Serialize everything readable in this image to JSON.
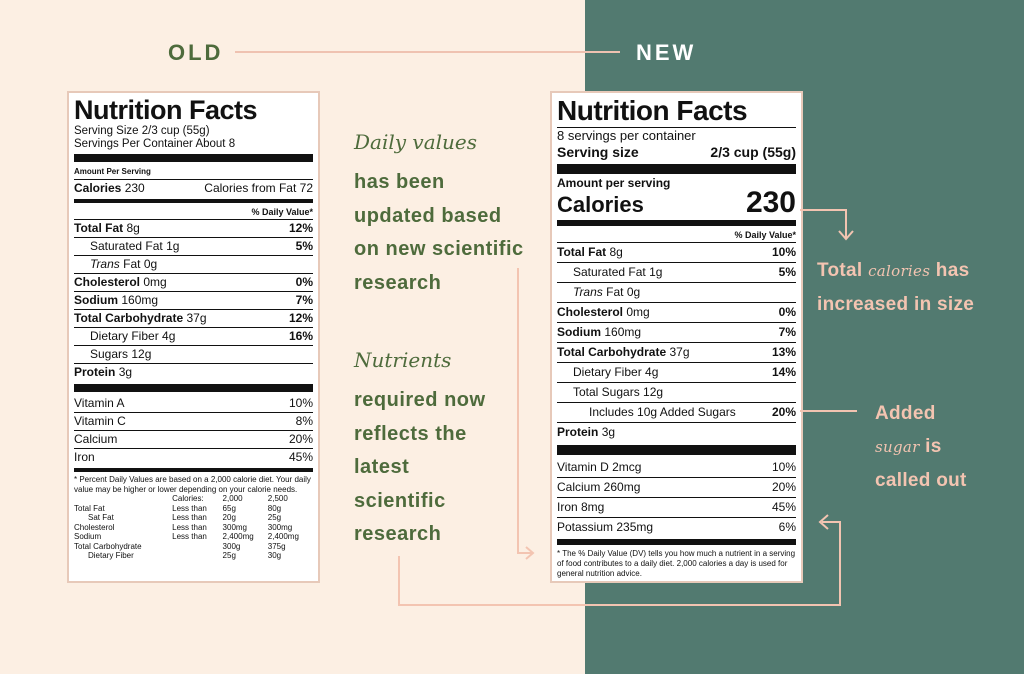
{
  "headers": {
    "old": "OLD",
    "new": "NEW"
  },
  "old_label": {
    "title": "Nutrition Facts",
    "serving_size": "Serving Size 2/3 cup (55g)",
    "servings_per_container": "Servings Per Container About 8",
    "amount_per_serving": "Amount Per Serving",
    "calories_label": "Calories",
    "calories_value": "230",
    "calories_from_fat": "Calories from Fat 72",
    "dv_header": "% Daily Value*",
    "nutrients": [
      {
        "name": "Total Fat",
        "amount": "8g",
        "dv": "12%"
      },
      {
        "name": "Saturated Fat",
        "amount": "1g",
        "dv": "5%"
      },
      {
        "name": "Trans",
        "amount": "Fat 0g",
        "dv": ""
      },
      {
        "name": "Cholesterol",
        "amount": "0mg",
        "dv": "0%"
      },
      {
        "name": "Sodium",
        "amount": "160mg",
        "dv": "7%"
      },
      {
        "name": "Total Carbohydrate",
        "amount": "37g",
        "dv": "12%"
      },
      {
        "name": "Dietary Fiber",
        "amount": "4g",
        "dv": "16%"
      },
      {
        "name": "Sugars",
        "amount": "12g",
        "dv": ""
      },
      {
        "name": "Protein",
        "amount": "3g",
        "dv": ""
      }
    ],
    "vitamins": [
      {
        "name": "Vitamin A",
        "dv": "10%"
      },
      {
        "name": "Vitamin C",
        "dv": "8%"
      },
      {
        "name": "Calcium",
        "dv": "20%"
      },
      {
        "name": "Iron",
        "dv": "45%"
      }
    ],
    "footnote": "* Percent Daily Values are based on a 2,000 calorie diet. Your daily value may be higher or lower depending on your calorie needs.",
    "table_header": [
      "Calories:",
      "2,000",
      "2,500"
    ],
    "table_rows": [
      [
        "Total Fat",
        "Less than",
        "65g",
        "80g"
      ],
      [
        "Sat Fat",
        "Less than",
        "20g",
        "25g"
      ],
      [
        "Cholesterol",
        "Less than",
        "300mg",
        "300mg"
      ],
      [
        "Sodium",
        "Less than",
        "2,400mg",
        "2,400mg"
      ],
      [
        "Total Carbohydrate",
        "",
        "300g",
        "375g"
      ],
      [
        "Dietary Fiber",
        "",
        "25g",
        "30g"
      ]
    ]
  },
  "new_label": {
    "title": "Nutrition Facts",
    "servings_per_container": "8 servings per container",
    "serving_size_label": "Serving size",
    "serving_size_value": "2/3 cup (55g)",
    "amount_per_serving": "Amount per serving",
    "calories_label": "Calories",
    "calories_value": "230",
    "dv_header": "% Daily Value*",
    "nutrients": [
      {
        "name": "Total Fat",
        "amount": "8g",
        "dv": "10%"
      },
      {
        "name": "Saturated Fat",
        "amount": "1g",
        "dv": "5%"
      },
      {
        "name": "Trans",
        "amount": "Fat 0g",
        "dv": ""
      },
      {
        "name": "Cholesterol",
        "amount": "0mg",
        "dv": "0%"
      },
      {
        "name": "Sodium",
        "amount": "160mg",
        "dv": "7%"
      },
      {
        "name": "Total Carbohydrate",
        "amount": "37g",
        "dv": "13%"
      },
      {
        "name": "Dietary Fiber",
        "amount": "4g",
        "dv": "14%"
      },
      {
        "name": "Total Sugars",
        "amount": "12g",
        "dv": ""
      },
      {
        "name": "Includes 10g Added Sugars",
        "amount": "",
        "dv": "20%"
      },
      {
        "name": "Protein",
        "amount": "3g",
        "dv": ""
      }
    ],
    "vitamins": [
      {
        "name": "Vitamin D 2mcg",
        "dv": "10%"
      },
      {
        "name": "Calcium 260mg",
        "dv": "20%"
      },
      {
        "name": "Iron 8mg",
        "dv": "45%"
      },
      {
        "name": "Potassium 235mg",
        "dv": "6%"
      }
    ],
    "footnote": "* The % Daily Value (DV) tells you how much a nutrient in a serving of food contributes to a daily diet. 2,000 calories a day is used for general nutrition advice."
  },
  "annotations": {
    "daily_values_script": "Daily values",
    "daily_values_text": [
      "has been",
      "updated based",
      "on new scientific",
      "research"
    ],
    "nutrients_script": "Nutrients",
    "nutrients_text": [
      "required now",
      "reflects the",
      "latest",
      "scientific",
      "research"
    ],
    "calories_line1_a": "Total",
    "calories_line1_script": "calories",
    "calories_line1_b": "has",
    "calories_line2": "increased in size",
    "added_line1": "Added",
    "added_line2_script": "sugar",
    "added_line2_b": "is",
    "added_line3": "called out"
  },
  "colors": {
    "left_bg": "#fcefe3",
    "right_bg": "#527a70",
    "green_text": "#4e6b3c",
    "peach": "#f3c4b1"
  }
}
